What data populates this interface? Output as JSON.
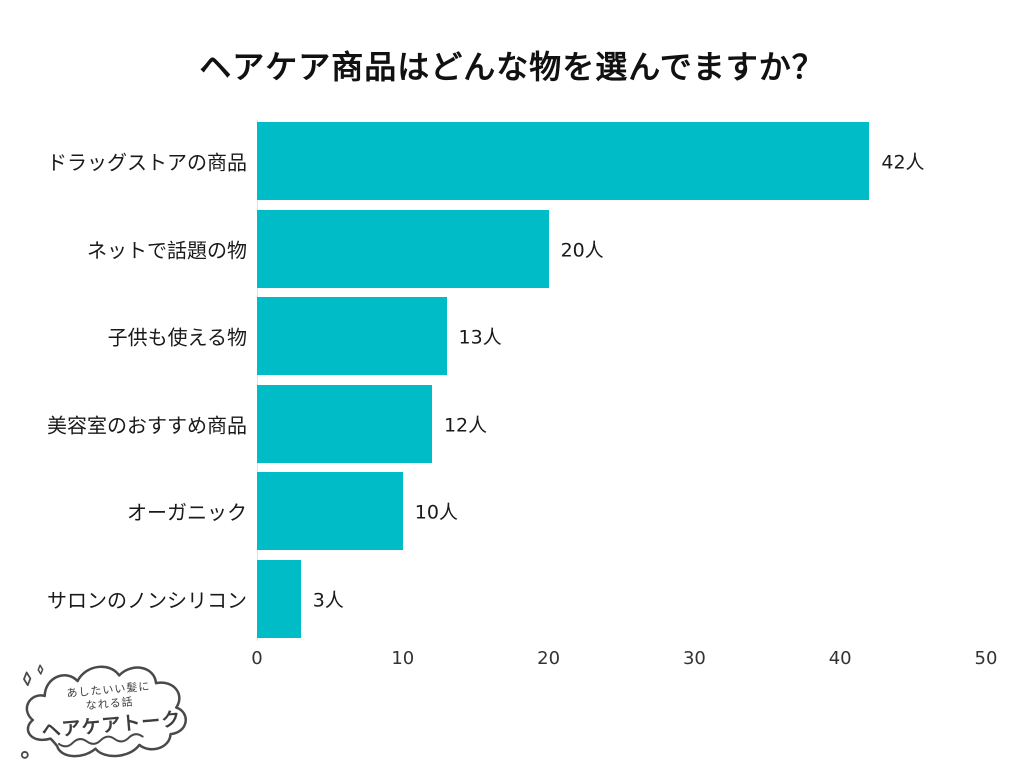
{
  "title": "ヘアケア商品はどんな物を選んでますか？",
  "chart_data": {
    "type": "bar",
    "orientation": "horizontal",
    "title": "ヘアケア商品はどんな物を選んでますか？",
    "categories": [
      "ドラッグストアの商品",
      "ネットで話題の物",
      "子供も使える物",
      "美容室のおすすめ商品",
      "オーガニック",
      "サロンのノンシリコン"
    ],
    "values": [
      42,
      20,
      13,
      12,
      10,
      3
    ],
    "value_labels": [
      "42人",
      "20人",
      "13人",
      "12人",
      "10人",
      "3人"
    ],
    "x_ticks": [
      0,
      10,
      20,
      30,
      40,
      50
    ],
    "xlim": [
      0,
      50
    ],
    "xlabel": "",
    "ylabel": "",
    "grid": false,
    "legend": false,
    "bar_color": "#00BCC6"
  },
  "logo": {
    "tagline_line1": "あしたいい髪に",
    "tagline_line2": "なれる話",
    "brand": "ヘアケアトーク"
  }
}
